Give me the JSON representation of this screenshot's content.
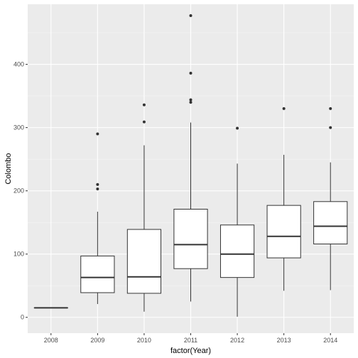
{
  "chart_data": {
    "type": "boxplot",
    "xlabel": "factor(Year)",
    "ylabel": "Colombo",
    "ylim": [
      -25,
      495
    ],
    "y_ticks": [
      0,
      100,
      200,
      300,
      400
    ],
    "y_tick_labels": [
      "0",
      "100",
      "200",
      "300",
      "400"
    ],
    "grid": true,
    "categories": [
      "2008",
      "2009",
      "2010",
      "2011",
      "2012",
      "2013",
      "2014"
    ],
    "boxes": [
      {
        "category": "2008",
        "min": 15,
        "q1": 15,
        "median": 15,
        "q3": 15,
        "max": 15,
        "outliers": []
      },
      {
        "category": "2009",
        "min": 21,
        "q1": 39,
        "median": 63,
        "q3": 97,
        "max": 167,
        "outliers": [
          203,
          210,
          290
        ]
      },
      {
        "category": "2010",
        "min": 9,
        "q1": 38,
        "median": 64,
        "q3": 139,
        "max": 272,
        "outliers": [
          309,
          336
        ]
      },
      {
        "category": "2011",
        "min": 25,
        "q1": 77,
        "median": 115,
        "q3": 171,
        "max": 308,
        "outliers": [
          340,
          344,
          386,
          477
        ]
      },
      {
        "category": "2012",
        "min": 1,
        "q1": 63,
        "median": 100,
        "q3": 146,
        "max": 243,
        "outliers": [
          299
        ]
      },
      {
        "category": "2013",
        "min": 42,
        "q1": 94,
        "median": 128,
        "q3": 177,
        "max": 257,
        "outliers": [
          330
        ]
      },
      {
        "category": "2014",
        "min": 43,
        "q1": 116,
        "median": 144,
        "q3": 183,
        "max": 245,
        "outliers": [
          300,
          330
        ]
      }
    ],
    "colors": {
      "panel": "#ebebeb",
      "grid_major": "#ffffff",
      "box_fill": "#ffffff",
      "box_line": "#333333",
      "tick_text": "#4d4d4d",
      "title_text": "#000000"
    }
  }
}
